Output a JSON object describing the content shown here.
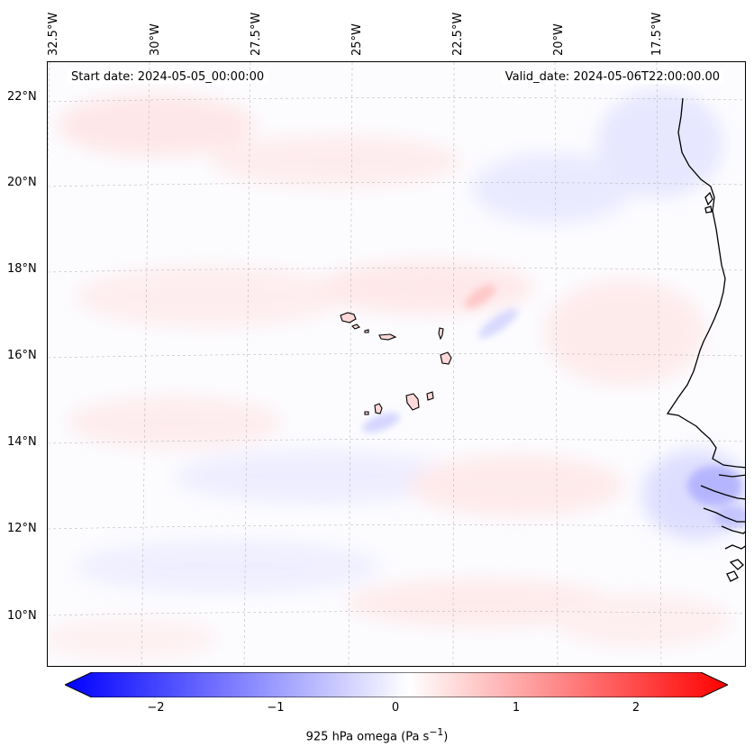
{
  "map": {
    "start_date": "Start date: 2024-05-05_00:00:00",
    "valid_date": "Valid_date: 2024-05-06T22:00:00.00",
    "lon_labels": [
      "32.5°W",
      "30°W",
      "27.5°W",
      "25°W",
      "22.5°W",
      "20°W",
      "17.5°W"
    ],
    "lat_labels": [
      "22°N",
      "20°N",
      "18°N",
      "16°N",
      "14°N",
      "12°N",
      "10°N"
    ],
    "colors": {
      "negative": "#0000ff",
      "positive": "#ff0000",
      "neutral": "#ffffff",
      "coastline": "#000000",
      "grid": "#bbbbbb"
    }
  },
  "colorbar": {
    "ticks": [
      "−2",
      "−1",
      "0",
      "1",
      "2"
    ],
    "label": "925 hPa omega (Pa s",
    "label_sup": "−1",
    "label_end": ")",
    "range": [
      -2.75,
      2.5
    ]
  }
}
